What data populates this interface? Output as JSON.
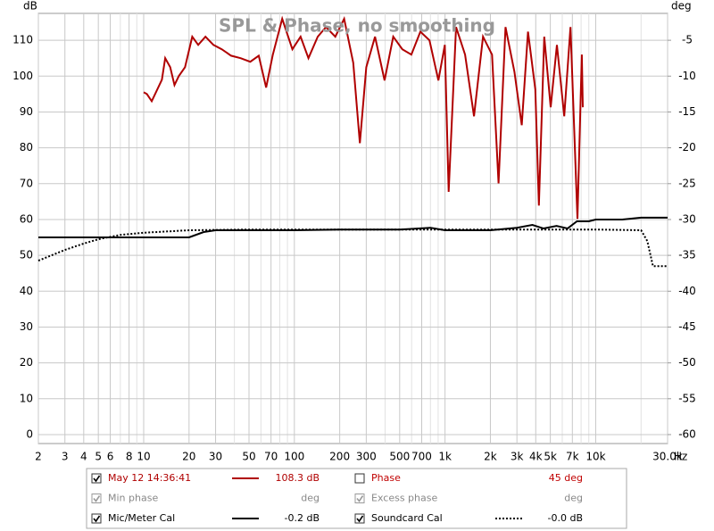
{
  "chart_data": {
    "type": "line",
    "title": "SPL & Phase, no smoothing",
    "y_label": "dB",
    "y2_label": "deg",
    "x_label": "Hz",
    "log_x": true,
    "grid": true,
    "xlim": [
      2,
      30000
    ],
    "xticks": [
      2,
      3,
      4,
      5,
      6,
      8,
      10,
      20,
      30,
      50,
      70,
      100,
      200,
      300,
      500,
      700,
      {
        "value": 1000,
        "label": "1k"
      },
      {
        "value": 2000,
        "label": "2k"
      },
      {
        "value": 3000,
        "label": "3k"
      },
      {
        "value": 4000,
        "label": "4k"
      },
      {
        "value": 5000,
        "label": "5k"
      },
      {
        "value": 7000,
        "label": "7k"
      },
      {
        "value": 10000,
        "label": "10k"
      },
      {
        "value": 30000,
        "label": "30.0k"
      }
    ],
    "ylim": [
      -2.5,
      117.5
    ],
    "yticks": [
      0,
      10,
      20,
      30,
      40,
      50,
      60,
      70,
      80,
      90,
      100,
      110
    ],
    "y2lim": [
      -61.25,
      -1.25
    ],
    "y2ticks": [
      -60,
      -55,
      -50,
      -45,
      -40,
      -35,
      -30,
      -25,
      -20,
      -15,
      -10,
      -5
    ],
    "series": [
      {
        "name": "May 12 14:36:41",
        "color": "#b00000",
        "dash": "solid",
        "checked": true,
        "legend_value": "108.3 dB",
        "x": [
          10,
          10.5,
          11.3,
          13.2,
          13.9,
          15,
          16,
          17.1,
          18.8,
          21,
          23,
          25.7,
          29,
          33,
          38,
          44,
          51,
          58,
          65,
          72,
          83,
          97,
          110,
          124,
          143,
          162,
          187,
          214,
          246,
          272,
          300,
          343,
          397,
          453,
          521,
          598,
          686,
          788,
          904,
          997,
          1057,
          1183,
          1358,
          1558,
          1788,
          2052,
          2265,
          2521,
          2890,
          3231,
          3555,
          3972,
          4196,
          4557,
          5027,
          5528,
          6180,
          6805,
          7570,
          8094,
          8210
        ],
        "values": [
          95.5,
          95,
          93,
          99,
          105,
          102.5,
          97.5,
          100,
          102.5,
          111,
          108.7,
          111,
          108.7,
          107.5,
          105.7,
          105,
          104,
          105.7,
          96.8,
          106,
          116,
          107.5,
          111,
          105,
          111,
          113.7,
          111,
          116,
          103.7,
          81.3,
          102.5,
          111,
          98.8,
          111,
          107.5,
          106,
          112.4,
          110,
          98.8,
          108.7,
          67.7,
          113.7,
          106,
          88.8,
          111,
          106,
          70.1,
          113.7,
          101.2,
          86.3,
          112.4,
          96.3,
          63.9,
          111,
          91.3,
          108.7,
          88.8,
          113.7,
          60.2,
          106,
          91.3
        ]
      },
      {
        "name": "Mic/Meter Cal",
        "color": "#000000",
        "dash": "solid",
        "checked": true,
        "legend_value": "-0.2 dB",
        "x": [
          2,
          20,
          25,
          30,
          100,
          200,
          500,
          800,
          1000,
          2000,
          3000,
          3800,
          4500,
          5500,
          6500,
          7500,
          9000,
          10000,
          15000,
          20000,
          30000
        ],
        "values": [
          55,
          55,
          56.5,
          57,
          57,
          57.2,
          57.2,
          57.7,
          57,
          57,
          57.7,
          58.5,
          57.5,
          58.2,
          57.5,
          59.5,
          59.5,
          60,
          60,
          60.5,
          60.5
        ]
      },
      {
        "name": "Soundcard Cal",
        "color": "#000000",
        "dash": "dotted",
        "checked": true,
        "legend_value": "-0.0 dB",
        "x": [
          2,
          3,
          4,
          5,
          7,
          10,
          20,
          50,
          1000,
          10000,
          20000,
          22000,
          24000,
          30000
        ],
        "values": [
          48.5,
          51.5,
          53.3,
          54.5,
          55.7,
          56.3,
          57,
          57.2,
          57.2,
          57.2,
          57,
          54,
          47,
          47
        ]
      }
    ],
    "legend_extra": [
      {
        "name": "Phase",
        "color": "#c00000",
        "checked": false,
        "enabled": true,
        "legend_value": "45 deg"
      },
      {
        "name": "Min phase",
        "color": "#888888",
        "checked": true,
        "enabled": false,
        "legend_value": "deg"
      },
      {
        "name": "Excess phase",
        "color": "#888888",
        "checked": true,
        "enabled": false,
        "legend_value": "deg"
      }
    ]
  }
}
